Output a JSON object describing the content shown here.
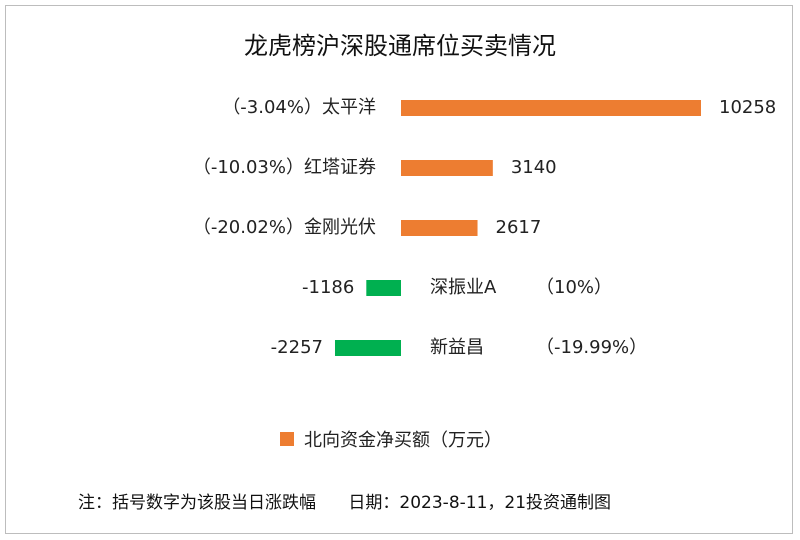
{
  "colors": {
    "positive": "#ED7D31",
    "negative": "#00B050"
  },
  "chart_data": {
    "type": "bar",
    "orientation": "horizontal",
    "title": "龙虎榜沪深股通席位买卖情况",
    "categories": [
      "太平洋",
      "红塔证券",
      "金刚光伏",
      "深振业A",
      "新益昌"
    ],
    "change_labels": [
      "（-3.04%）",
      "（-10.03%）",
      "（-20.02%）",
      "（10%）",
      "（-19.99%）"
    ],
    "series": [
      {
        "name": "北向资金净买额（万元）",
        "values": [
          10258,
          3140,
          2617,
          -1186,
          -2257
        ]
      }
    ],
    "legend_position": "bottom",
    "grid": false
  },
  "footnote": "注：括号数字为该股当日涨跌幅      日期：2023-8-11，21投资通制图"
}
